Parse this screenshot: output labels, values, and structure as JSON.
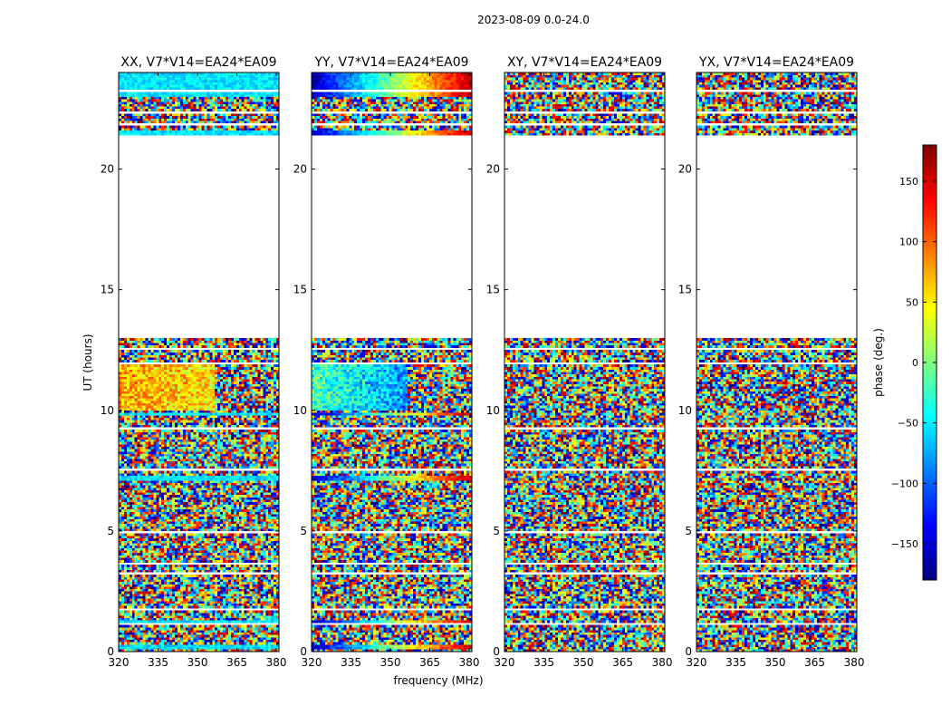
{
  "figure": {
    "suptitle": "2023-08-09 0.0-24.0",
    "xlabel": "frequency (MHz)",
    "ylabel": "UT (hours)",
    "background": "#ffffff"
  },
  "chart_data": {
    "type": "heatmap",
    "title": "2023-08-09 0.0-24.0",
    "xlabel": "frequency (MHz)",
    "ylabel": "UT (hours)",
    "xlim": [
      320,
      381
    ],
    "ylim": [
      0,
      24
    ],
    "x_ticks": [
      320,
      335,
      350,
      365,
      380
    ],
    "y_ticks": [
      0,
      5,
      10,
      15,
      20
    ],
    "panels": [
      {
        "name": "XX",
        "title": "XX, V7*V14=EA24*EA09"
      },
      {
        "name": "YY",
        "title": "YY, V7*V14=EA24*EA09"
      },
      {
        "name": "XY",
        "title": "XY, V7*V14=EA24*EA09"
      },
      {
        "name": "YX",
        "title": "YX, V7*V14=EA24*EA09"
      }
    ],
    "data_gaps_hours": [
      [
        12.95,
        21.4
      ]
    ],
    "colorbar": {
      "label": "phase (deg.)",
      "range": [
        -180,
        180
      ],
      "ticks": [
        150,
        100,
        50,
        0,
        -50,
        -100,
        -150
      ],
      "tick_labels": [
        "150",
        "100",
        "50",
        "0",
        "−50",
        "−100",
        "−150"
      ],
      "colormap": "jet",
      "colors": [
        "#00007f",
        "#0000ff",
        "#007fff",
        "#00ffff",
        "#7fff7f",
        "#ffff00",
        "#ff7f00",
        "#ff0000",
        "#7f0000"
      ]
    }
  }
}
